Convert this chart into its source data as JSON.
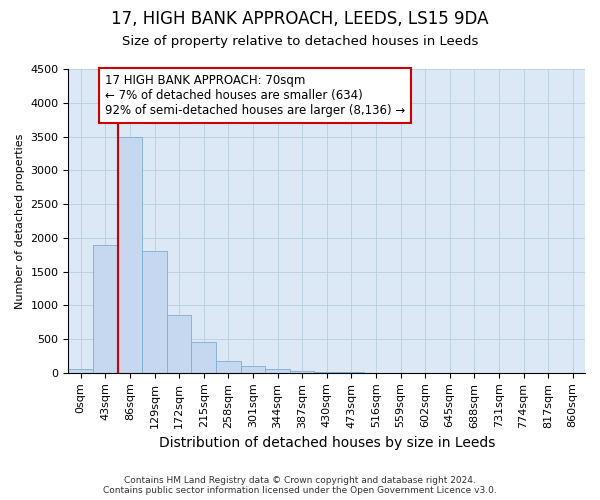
{
  "title": "17, HIGH BANK APPROACH, LEEDS, LS15 9DA",
  "subtitle": "Size of property relative to detached houses in Leeds",
  "xlabel": "Distribution of detached houses by size in Leeds",
  "ylabel": "Number of detached properties",
  "footer_line1": "Contains HM Land Registry data © Crown copyright and database right 2024.",
  "footer_line2": "Contains public sector information licensed under the Open Government Licence v3.0.",
  "bin_labels": [
    "0sqm",
    "43sqm",
    "86sqm",
    "129sqm",
    "172sqm",
    "215sqm",
    "258sqm",
    "301sqm",
    "344sqm",
    "387sqm",
    "430sqm",
    "473sqm",
    "516sqm",
    "559sqm",
    "602sqm",
    "645sqm",
    "688sqm",
    "731sqm",
    "774sqm",
    "817sqm",
    "860sqm"
  ],
  "bar_values": [
    50,
    1900,
    3500,
    1800,
    850,
    450,
    175,
    100,
    60,
    30,
    10,
    5,
    3,
    0,
    0,
    0,
    0,
    0,
    0,
    0,
    0
  ],
  "bar_color": "#c5d8ef",
  "bar_edge_color": "#7aadd4",
  "ylim": [
    0,
    4500
  ],
  "yticks": [
    0,
    500,
    1000,
    1500,
    2000,
    2500,
    3000,
    3500,
    4000,
    4500
  ],
  "red_line_x": 1.5,
  "annotation_line1": "17 HIGH BANK APPROACH: 70sqm",
  "annotation_line2": "← 7% of detached houses are smaller (634)",
  "annotation_line3": "92% of semi-detached houses are larger (8,136) →",
  "red_line_color": "#cc0000",
  "background_color": "#ffffff",
  "plot_bg_color": "#dce8f5",
  "grid_color": "#b8cfe0",
  "title_fontsize": 12,
  "subtitle_fontsize": 9.5,
  "xlabel_fontsize": 10,
  "ylabel_fontsize": 8,
  "tick_fontsize": 8,
  "annotation_fontsize": 8.5
}
